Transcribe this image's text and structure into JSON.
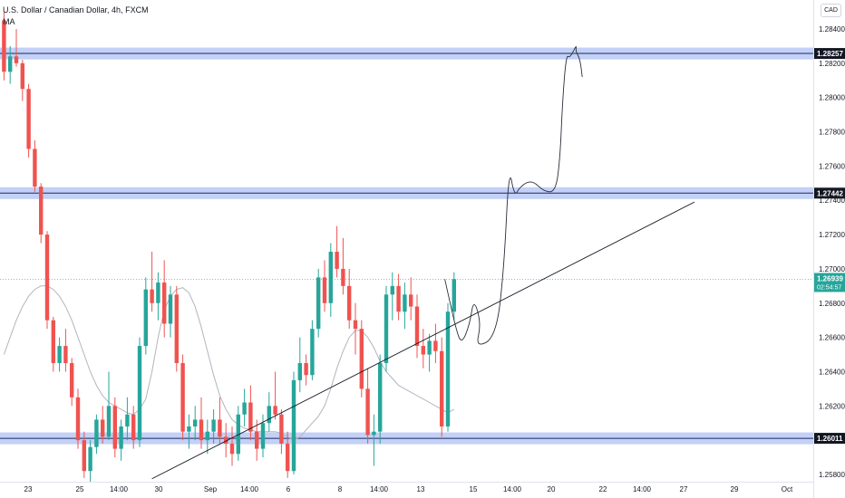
{
  "legend": {
    "title": "U.S. Dollar / Canadian Dollar, 4h, FXCM",
    "indicator": "MA"
  },
  "currency_button": "CAD",
  "colors": {
    "up": "#26a69a",
    "down": "#ef5350",
    "zone": "#b9c8f6",
    "ma": "#b2b5be",
    "trend": "#131722",
    "current": "#26a69a"
  },
  "chart_data": {
    "type": "candlestick",
    "y_axis": {
      "min": 1.2575,
      "max": 1.286,
      "ticks": [
        "1.28400",
        "1.28200",
        "1.28000",
        "1.27800",
        "1.27600",
        "1.27400",
        "1.27200",
        "1.27000",
        "1.26800",
        "1.26600",
        "1.26400",
        "1.26200",
        "1.25800"
      ],
      "tick_values": [
        1.284,
        1.282,
        1.28,
        1.278,
        1.276,
        1.274,
        1.272,
        1.27,
        1.268,
        1.266,
        1.264,
        1.262,
        1.258
      ]
    },
    "x_axis": {
      "labels": [
        "23",
        "25",
        "14:00",
        "30",
        "Sep",
        "14:00",
        "6",
        "8",
        "14:00",
        "13",
        "15",
        "14:00",
        "20",
        "22",
        "14:00",
        "27",
        "29",
        "Oct"
      ]
    },
    "price_lines": [
      {
        "label": "1.28257",
        "value": 1.28257
      },
      {
        "label": "1.27442",
        "value": 1.27442
      },
      {
        "label": "1.26011",
        "value": 1.26011
      }
    ],
    "current_price": {
      "value": 1.26939,
      "label": "1.26939",
      "countdown": "02:54:57"
    },
    "candles": [
      [
        1.2845,
        1.285,
        1.281,
        1.2815
      ],
      [
        1.2815,
        1.283,
        1.2808,
        1.2824
      ],
      [
        1.2824,
        1.284,
        1.2818,
        1.282
      ],
      [
        1.282,
        1.2822,
        1.2798,
        1.2805
      ],
      [
        1.2805,
        1.2808,
        1.2765,
        1.277
      ],
      [
        1.277,
        1.2775,
        1.2745,
        1.2748
      ],
      [
        1.2748,
        1.275,
        1.2715,
        1.272
      ],
      [
        1.272,
        1.2722,
        1.2665,
        1.267
      ],
      [
        1.267,
        1.2672,
        1.264,
        1.2645
      ],
      [
        1.2645,
        1.266,
        1.264,
        1.2655
      ],
      [
        1.2655,
        1.2665,
        1.264,
        1.2645
      ],
      [
        1.2645,
        1.2648,
        1.262,
        1.2625
      ],
      [
        1.2625,
        1.263,
        1.2595,
        1.26
      ],
      [
        1.26,
        1.2605,
        1.2578,
        1.2582
      ],
      [
        1.2582,
        1.26,
        1.2575,
        1.2596
      ],
      [
        1.2596,
        1.2615,
        1.2592,
        1.2612
      ],
      [
        1.2612,
        1.262,
        1.2598,
        1.2602
      ],
      [
        1.2602,
        1.264,
        1.26,
        1.262
      ],
      [
        1.262,
        1.2625,
        1.259,
        1.2595
      ],
      [
        1.2595,
        1.2612,
        1.2588,
        1.2608
      ],
      [
        1.2608,
        1.2625,
        1.26,
        1.2615
      ],
      [
        1.2615,
        1.262,
        1.2595,
        1.26
      ],
      [
        1.26,
        1.266,
        1.2596,
        1.2655
      ],
      [
        1.2655,
        1.2695,
        1.265,
        1.2688
      ],
      [
        1.2688,
        1.271,
        1.2675,
        1.268
      ],
      [
        1.268,
        1.2698,
        1.267,
        1.2692
      ],
      [
        1.2692,
        1.2705,
        1.266,
        1.2668
      ],
      [
        1.2668,
        1.269,
        1.266,
        1.2685
      ],
      [
        1.2685,
        1.269,
        1.264,
        1.2645
      ],
      [
        1.2645,
        1.265,
        1.26,
        1.2605
      ],
      [
        1.2605,
        1.2615,
        1.2595,
        1.2608
      ],
      [
        1.2608,
        1.262,
        1.26,
        1.2612
      ],
      [
        1.2612,
        1.2625,
        1.2595,
        1.26
      ],
      [
        1.26,
        1.2612,
        1.2592,
        1.2605
      ],
      [
        1.2605,
        1.2618,
        1.2598,
        1.2612
      ],
      [
        1.2612,
        1.2625,
        1.2598,
        1.2602
      ],
      [
        1.2602,
        1.261,
        1.259,
        1.2598
      ],
      [
        1.2598,
        1.2608,
        1.2585,
        1.2592
      ],
      [
        1.2592,
        1.262,
        1.2588,
        1.2615
      ],
      [
        1.2615,
        1.263,
        1.2608,
        1.2622
      ],
      [
        1.2622,
        1.2632,
        1.26,
        1.2605
      ],
      [
        1.2605,
        1.2612,
        1.2588,
        1.2595
      ],
      [
        1.2595,
        1.2615,
        1.259,
        1.261
      ],
      [
        1.261,
        1.2628,
        1.2605,
        1.262
      ],
      [
        1.262,
        1.264,
        1.2612,
        1.2615
      ],
      [
        1.2615,
        1.2618,
        1.2592,
        1.2598
      ],
      [
        1.2598,
        1.2605,
        1.2578,
        1.2582
      ],
      [
        1.2582,
        1.264,
        1.258,
        1.2635
      ],
      [
        1.2635,
        1.266,
        1.2628,
        1.2645
      ],
      [
        1.2645,
        1.265,
        1.2632,
        1.2638
      ],
      [
        1.2638,
        1.267,
        1.2635,
        1.2665
      ],
      [
        1.2665,
        1.27,
        1.266,
        1.2695
      ],
      [
        1.2695,
        1.2705,
        1.2675,
        1.268
      ],
      [
        1.268,
        1.2715,
        1.2672,
        1.271
      ],
      [
        1.271,
        1.2725,
        1.2695,
        1.27
      ],
      [
        1.27,
        1.2718,
        1.2685,
        1.269
      ],
      [
        1.269,
        1.27,
        1.2665,
        1.267
      ],
      [
        1.267,
        1.268,
        1.265,
        1.2665
      ],
      [
        1.2665,
        1.267,
        1.2625,
        1.263
      ],
      [
        1.263,
        1.2642,
        1.2598,
        1.2603
      ],
      [
        1.2603,
        1.2615,
        1.2585,
        1.2605
      ],
      [
        1.2605,
        1.265,
        1.2598,
        1.2645
      ],
      [
        1.2645,
        1.269,
        1.264,
        1.2685
      ],
      [
        1.2685,
        1.2698,
        1.267,
        1.269
      ],
      [
        1.269,
        1.2697,
        1.267,
        1.2675
      ],
      [
        1.2675,
        1.2692,
        1.2665,
        1.2685
      ],
      [
        1.2685,
        1.2695,
        1.267,
        1.2678
      ],
      [
        1.2678,
        1.2685,
        1.2648,
        1.2655
      ],
      [
        1.2655,
        1.2665,
        1.2642,
        1.265
      ],
      [
        1.265,
        1.2662,
        1.264,
        1.2658
      ],
      [
        1.2658,
        1.2668,
        1.2645,
        1.2652
      ],
      [
        1.2652,
        1.266,
        1.2602,
        1.2608
      ],
      [
        1.2608,
        1.268,
        1.2605,
        1.2675
      ],
      [
        1.2675,
        1.2698,
        1.267,
        1.2694
      ]
    ],
    "moving_average": [
      1.265,
      1.266,
      1.267,
      1.2678,
      1.2684,
      1.2688,
      1.269,
      1.269,
      1.2688,
      1.2684,
      1.2678,
      1.267,
      1.266,
      1.265,
      1.264,
      1.2632,
      1.2626,
      1.2622,
      1.262,
      1.2618,
      1.2616,
      1.2615,
      1.2618,
      1.2624,
      1.264,
      1.266,
      1.2676,
      1.2684,
      1.2688,
      1.2689,
      1.2686,
      1.2678,
      1.2666,
      1.2652,
      1.2638,
      1.2626,
      1.2618,
      1.2612,
      1.2609,
      1.2607,
      1.2606,
      1.2605,
      1.2605,
      1.2605,
      1.2605,
      1.2604,
      1.2602,
      1.26,
      1.2602,
      1.2606,
      1.261,
      1.2614,
      1.262,
      1.263,
      1.2642,
      1.2652,
      1.266,
      1.2664,
      1.2664,
      1.266,
      1.2654,
      1.2646,
      1.264,
      1.2636,
      1.2632,
      1.263,
      1.2628,
      1.2626,
      1.2624,
      1.2622,
      1.262,
      1.2618,
      1.2616,
      1.2618
    ],
    "trendline": [
      {
        "i": 24,
        "v": 1.25775
      },
      {
        "i": 112,
        "v": 1.2739
      }
    ],
    "projection_path": [
      [
        71.5,
        1.2694
      ],
      [
        73.3,
        1.2665
      ],
      [
        74.2,
        1.2656
      ],
      [
        75.5,
        1.2667
      ],
      [
        76.2,
        1.2683
      ],
      [
        77.4,
        1.2668
      ],
      [
        76.5,
        1.2654
      ],
      [
        79.8,
        1.266
      ],
      [
        81.1,
        1.27
      ],
      [
        81.9,
        1.276
      ],
      [
        82.8,
        1.2742
      ],
      [
        83.7,
        1.2748
      ],
      [
        85.6,
        1.2752
      ],
      [
        87.6,
        1.2745
      ],
      [
        89.5,
        1.2745
      ],
      [
        90.2,
        1.2765
      ],
      [
        90.6,
        1.2798
      ],
      [
        91.2,
        1.2825
      ],
      [
        91.8,
        1.2823
      ],
      [
        92.9,
        1.2831
      ],
      [
        92.7,
        1.2827
      ],
      [
        93.4,
        1.2823
      ],
      [
        93.8,
        1.2812
      ]
    ]
  }
}
